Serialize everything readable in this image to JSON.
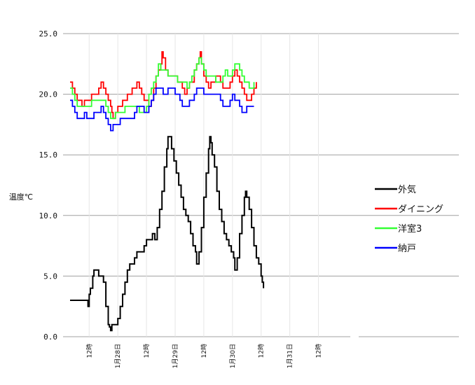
{
  "chart_data": {
    "type": "line",
    "title": "",
    "ylabel": "温度℃",
    "xlabel": "",
    "ylim": [
      0,
      25
    ],
    "yticks": [
      "0.0",
      "5.0",
      "10.0",
      "15.0",
      "20.0",
      "25.0"
    ],
    "xlim": [
      0,
      230
    ],
    "xticks": [
      {
        "x": 16,
        "label": "12時"
      },
      {
        "x": 40,
        "label": "1月28日"
      },
      {
        "x": 64,
        "label": "12時"
      },
      {
        "x": 88,
        "label": "1月29日"
      },
      {
        "x": 112,
        "label": "12時"
      },
      {
        "x": 136,
        "label": "1月30日"
      },
      {
        "x": 160,
        "label": "12時"
      },
      {
        "x": 184,
        "label": "1月31日"
      },
      {
        "x": 208,
        "label": "12時"
      }
    ],
    "grid": true,
    "legend_position": "right",
    "series": [
      {
        "name": "外気",
        "color": "#000000",
        "points": [
          [
            0,
            3.0
          ],
          [
            14,
            3.0
          ],
          [
            15,
            2.5
          ],
          [
            16,
            3.5
          ],
          [
            17,
            4.0
          ],
          [
            19,
            5.0
          ],
          [
            20,
            5.5
          ],
          [
            23,
            5.5
          ],
          [
            24,
            5.0
          ],
          [
            27,
            5.0
          ],
          [
            28,
            4.5
          ],
          [
            30,
            2.5
          ],
          [
            32,
            1.0
          ],
          [
            33,
            0.8
          ],
          [
            34,
            0.5
          ],
          [
            35,
            1.0
          ],
          [
            39,
            1.0
          ],
          [
            40,
            1.5
          ],
          [
            42,
            2.5
          ],
          [
            44,
            3.5
          ],
          [
            46,
            4.5
          ],
          [
            48,
            5.5
          ],
          [
            50,
            6.0
          ],
          [
            52,
            6.0
          ],
          [
            54,
            6.5
          ],
          [
            56,
            7.0
          ],
          [
            60,
            7.0
          ],
          [
            62,
            7.5
          ],
          [
            64,
            8.0
          ],
          [
            68,
            8.0
          ],
          [
            69,
            8.5
          ],
          [
            71,
            8.0
          ],
          [
            73,
            9.0
          ],
          [
            75,
            10.5
          ],
          [
            77,
            12.0
          ],
          [
            79,
            14.0
          ],
          [
            81,
            15.5
          ],
          [
            82,
            16.5
          ],
          [
            84,
            16.5
          ],
          [
            85,
            15.5
          ],
          [
            87,
            14.5
          ],
          [
            89,
            13.5
          ],
          [
            91,
            12.5
          ],
          [
            93,
            11.5
          ],
          [
            95,
            10.5
          ],
          [
            97,
            10.0
          ],
          [
            99,
            9.5
          ],
          [
            101,
            8.5
          ],
          [
            103,
            7.5
          ],
          [
            105,
            7.0
          ],
          [
            106,
            6.0
          ],
          [
            108,
            7.0
          ],
          [
            110,
            9.0
          ],
          [
            112,
            11.5
          ],
          [
            114,
            13.5
          ],
          [
            116,
            15.5
          ],
          [
            117,
            16.5
          ],
          [
            118,
            16.0
          ],
          [
            119,
            15.0
          ],
          [
            121,
            14.0
          ],
          [
            123,
            12.0
          ],
          [
            125,
            10.5
          ],
          [
            127,
            9.5
          ],
          [
            129,
            8.5
          ],
          [
            131,
            8.0
          ],
          [
            133,
            7.5
          ],
          [
            135,
            7.0
          ],
          [
            137,
            6.5
          ],
          [
            138,
            5.5
          ],
          [
            140,
            6.5
          ],
          [
            142,
            8.5
          ],
          [
            144,
            10.0
          ],
          [
            146,
            11.5
          ],
          [
            147,
            12.0
          ],
          [
            148,
            11.5
          ],
          [
            150,
            10.5
          ],
          [
            152,
            9.0
          ],
          [
            154,
            7.5
          ],
          [
            156,
            6.5
          ],
          [
            158,
            6.0
          ],
          [
            160,
            5.0
          ],
          [
            161,
            4.5
          ],
          [
            162,
            4.0
          ]
        ]
      },
      {
        "name": "ダイニング",
        "color": "#ff0000",
        "points": [
          [
            0,
            21.0
          ],
          [
            2,
            20.5
          ],
          [
            4,
            20.0
          ],
          [
            6,
            19.5
          ],
          [
            8,
            19.5
          ],
          [
            10,
            19.0
          ],
          [
            12,
            19.5
          ],
          [
            18,
            20.0
          ],
          [
            24,
            20.5
          ],
          [
            26,
            21.0
          ],
          [
            28,
            20.5
          ],
          [
            30,
            20.0
          ],
          [
            32,
            19.5
          ],
          [
            34,
            19.0
          ],
          [
            35,
            18.5
          ],
          [
            36,
            18.0
          ],
          [
            38,
            18.5
          ],
          [
            40,
            19.0
          ],
          [
            44,
            19.5
          ],
          [
            48,
            20.0
          ],
          [
            52,
            20.5
          ],
          [
            56,
            21.0
          ],
          [
            58,
            20.5
          ],
          [
            60,
            20.0
          ],
          [
            62,
            19.5
          ],
          [
            64,
            19.5
          ],
          [
            66,
            19.0
          ],
          [
            68,
            19.5
          ],
          [
            70,
            20.5
          ],
          [
            72,
            21.5
          ],
          [
            74,
            22.0
          ],
          [
            76,
            22.5
          ],
          [
            77,
            23.5
          ],
          [
            78,
            23.0
          ],
          [
            80,
            22.0
          ],
          [
            82,
            21.5
          ],
          [
            86,
            21.5
          ],
          [
            90,
            21.0
          ],
          [
            94,
            20.5
          ],
          [
            96,
            20.0
          ],
          [
            98,
            20.5
          ],
          [
            100,
            21.0
          ],
          [
            104,
            22.0
          ],
          [
            106,
            22.5
          ],
          [
            108,
            23.0
          ],
          [
            109,
            23.5
          ],
          [
            110,
            22.5
          ],
          [
            112,
            21.5
          ],
          [
            114,
            21.0
          ],
          [
            116,
            20.5
          ],
          [
            118,
            21.0
          ],
          [
            122,
            21.5
          ],
          [
            126,
            21.0
          ],
          [
            128,
            20.5
          ],
          [
            130,
            20.5
          ],
          [
            134,
            21.0
          ],
          [
            136,
            21.5
          ],
          [
            138,
            22.0
          ],
          [
            140,
            21.5
          ],
          [
            142,
            21.0
          ],
          [
            144,
            20.5
          ],
          [
            146,
            20.0
          ],
          [
            148,
            19.5
          ],
          [
            152,
            20.0
          ],
          [
            154,
            20.5
          ],
          [
            156,
            21.0
          ]
        ]
      },
      {
        "name": "洋室3",
        "color": "#33ff33",
        "points": [
          [
            0,
            20.5
          ],
          [
            2,
            20.0
          ],
          [
            4,
            19.5
          ],
          [
            6,
            19.0
          ],
          [
            10,
            19.0
          ],
          [
            14,
            19.0
          ],
          [
            18,
            19.5
          ],
          [
            28,
            19.5
          ],
          [
            30,
            19.0
          ],
          [
            32,
            18.5
          ],
          [
            34,
            18.0
          ],
          [
            38,
            18.5
          ],
          [
            44,
            18.5
          ],
          [
            46,
            19.0
          ],
          [
            54,
            19.0
          ],
          [
            58,
            18.5
          ],
          [
            62,
            18.5
          ],
          [
            64,
            19.0
          ],
          [
            66,
            20.0
          ],
          [
            68,
            20.5
          ],
          [
            70,
            21.0
          ],
          [
            72,
            21.5
          ],
          [
            74,
            22.5
          ],
          [
            76,
            22.0
          ],
          [
            78,
            22.0
          ],
          [
            82,
            21.5
          ],
          [
            86,
            21.5
          ],
          [
            90,
            21.0
          ],
          [
            94,
            21.0
          ],
          [
            98,
            20.5
          ],
          [
            100,
            21.0
          ],
          [
            102,
            21.5
          ],
          [
            104,
            22.0
          ],
          [
            106,
            22.5
          ],
          [
            108,
            23.0
          ],
          [
            110,
            22.5
          ],
          [
            112,
            22.0
          ],
          [
            114,
            21.5
          ],
          [
            118,
            21.5
          ],
          [
            122,
            21.0
          ],
          [
            126,
            21.0
          ],
          [
            128,
            21.5
          ],
          [
            130,
            22.0
          ],
          [
            132,
            21.5
          ],
          [
            134,
            21.5
          ],
          [
            136,
            22.0
          ],
          [
            138,
            22.5
          ],
          [
            140,
            22.5
          ],
          [
            142,
            22.0
          ],
          [
            144,
            21.5
          ],
          [
            146,
            21.0
          ],
          [
            150,
            20.5
          ],
          [
            152,
            20.5
          ],
          [
            154,
            21.0
          ]
        ]
      },
      {
        "name": "納戸",
        "color": "#0000ff",
        "points": [
          [
            0,
            19.5
          ],
          [
            2,
            19.0
          ],
          [
            4,
            18.5
          ],
          [
            6,
            18.0
          ],
          [
            10,
            18.0
          ],
          [
            12,
            18.5
          ],
          [
            14,
            18.0
          ],
          [
            18,
            18.0
          ],
          [
            20,
            18.5
          ],
          [
            24,
            18.5
          ],
          [
            26,
            19.0
          ],
          [
            28,
            18.5
          ],
          [
            30,
            18.0
          ],
          [
            32,
            17.5
          ],
          [
            34,
            17.0
          ],
          [
            36,
            17.5
          ],
          [
            40,
            17.5
          ],
          [
            42,
            18.0
          ],
          [
            52,
            18.0
          ],
          [
            54,
            18.5
          ],
          [
            56,
            19.0
          ],
          [
            60,
            19.0
          ],
          [
            62,
            18.5
          ],
          [
            64,
            18.5
          ],
          [
            66,
            19.0
          ],
          [
            68,
            19.5
          ],
          [
            70,
            20.0
          ],
          [
            72,
            20.5
          ],
          [
            76,
            20.5
          ],
          [
            78,
            20.0
          ],
          [
            80,
            20.0
          ],
          [
            82,
            20.5
          ],
          [
            86,
            20.5
          ],
          [
            88,
            20.0
          ],
          [
            92,
            19.5
          ],
          [
            94,
            19.0
          ],
          [
            98,
            19.0
          ],
          [
            100,
            19.5
          ],
          [
            104,
            20.0
          ],
          [
            106,
            20.5
          ],
          [
            110,
            20.5
          ],
          [
            112,
            20.0
          ],
          [
            122,
            20.0
          ],
          [
            126,
            19.5
          ],
          [
            128,
            19.0
          ],
          [
            132,
            19.0
          ],
          [
            134,
            19.5
          ],
          [
            136,
            20.0
          ],
          [
            138,
            19.5
          ],
          [
            142,
            19.0
          ],
          [
            144,
            18.5
          ],
          [
            146,
            18.5
          ],
          [
            148,
            19.0
          ],
          [
            150,
            19.0
          ],
          [
            154,
            19.0
          ]
        ]
      }
    ]
  }
}
